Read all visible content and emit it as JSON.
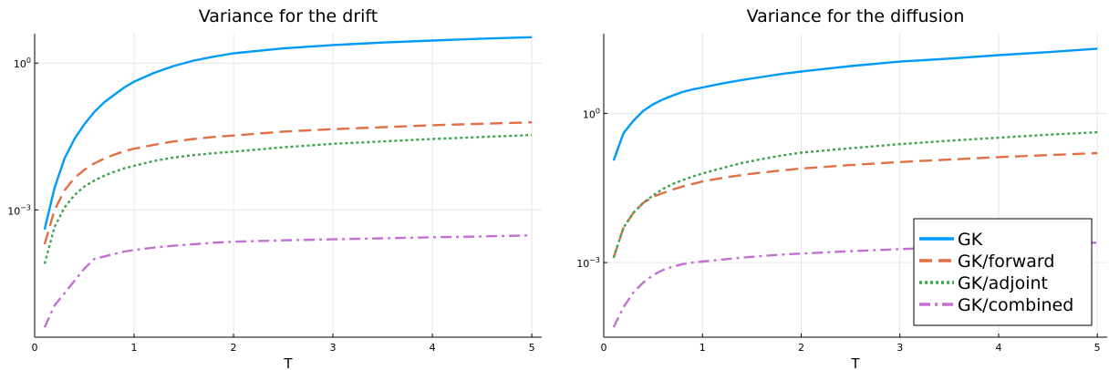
{
  "chart_data": [
    {
      "type": "line",
      "title": "Variance for the drift",
      "xlabel": "T",
      "ylabel": "",
      "yscale": "log10",
      "xlim": [
        0,
        5.1
      ],
      "ylim_log10": [
        -5.6,
        0.6
      ],
      "x_ticks": [
        0,
        1,
        2,
        3,
        4,
        5
      ],
      "x_tick_labels": [
        "0",
        "1",
        "2",
        "3",
        "4",
        "5"
      ],
      "y_ticks_log10": [
        0,
        -3
      ],
      "y_tick_labels": [
        {
          "base": "10",
          "exp": "0"
        },
        {
          "base": "10",
          "exp": "−3"
        }
      ],
      "grid": true,
      "legend": "none",
      "x": [
        0.1,
        0.2,
        0.3,
        0.4,
        0.5,
        0.6,
        0.7,
        0.8,
        0.9,
        1.0,
        1.2,
        1.4,
        1.6,
        1.8,
        2.0,
        2.5,
        3.0,
        3.5,
        4.0,
        4.5,
        5.0
      ],
      "series": [
        {
          "name": "GK",
          "color": "#009af9",
          "dash": "solid",
          "values_log10": [
            -3.4,
            -2.55,
            -1.95,
            -1.55,
            -1.25,
            -1.0,
            -0.8,
            -0.65,
            -0.5,
            -0.38,
            -0.2,
            -0.06,
            0.05,
            0.13,
            0.2,
            0.3,
            0.37,
            0.42,
            0.46,
            0.5,
            0.53
          ]
        },
        {
          "name": "GK/forward",
          "color": "#e26f46",
          "dash": "dashed",
          "values_log10": [
            -3.7,
            -3.0,
            -2.6,
            -2.35,
            -2.18,
            -2.05,
            -1.95,
            -1.87,
            -1.8,
            -1.75,
            -1.67,
            -1.6,
            -1.55,
            -1.51,
            -1.48,
            -1.4,
            -1.35,
            -1.31,
            -1.27,
            -1.24,
            -1.21
          ]
        },
        {
          "name": "GK/adjoint",
          "color": "#3da44d",
          "dash": "dotted",
          "values_log10": [
            -4.1,
            -3.35,
            -2.95,
            -2.7,
            -2.52,
            -2.4,
            -2.3,
            -2.22,
            -2.15,
            -2.1,
            -2.0,
            -1.93,
            -1.88,
            -1.84,
            -1.81,
            -1.72,
            -1.65,
            -1.6,
            -1.55,
            -1.51,
            -1.47
          ]
        },
        {
          "name": "GK/combined",
          "color": "#c271d2",
          "dash": "dashdot",
          "values_log10": [
            -5.4,
            -4.95,
            -4.7,
            -4.45,
            -4.2,
            -4.0,
            -3.95,
            -3.9,
            -3.85,
            -3.82,
            -3.77,
            -3.73,
            -3.7,
            -3.67,
            -3.65,
            -3.62,
            -3.6,
            -3.58,
            -3.56,
            -3.54,
            -3.52
          ]
        }
      ]
    },
    {
      "type": "line",
      "title": "Variance for the diffusion",
      "xlabel": "T",
      "ylabel": "",
      "yscale": "log10",
      "xlim": [
        0,
        5.1
      ],
      "ylim_log10": [
        -4.5,
        1.6
      ],
      "x_ticks": [
        0,
        1,
        2,
        3,
        4,
        5
      ],
      "x_tick_labels": [
        "0",
        "1",
        "2",
        "3",
        "4",
        "5"
      ],
      "y_ticks_log10": [
        0,
        -3
      ],
      "y_tick_labels": [
        {
          "base": "10",
          "exp": "0"
        },
        {
          "base": "10",
          "exp": "−3"
        }
      ],
      "grid": true,
      "legend": "bottom-right",
      "x": [
        0.1,
        0.2,
        0.3,
        0.4,
        0.5,
        0.6,
        0.7,
        0.8,
        0.9,
        1.0,
        1.2,
        1.4,
        1.6,
        1.8,
        2.0,
        2.5,
        3.0,
        3.5,
        4.0,
        4.5,
        5.0
      ],
      "series": [
        {
          "name": "GK",
          "color": "#009af9",
          "dash": "solid",
          "values_log10": [
            -0.95,
            -0.4,
            -0.15,
            0.05,
            0.18,
            0.28,
            0.36,
            0.43,
            0.48,
            0.52,
            0.6,
            0.67,
            0.73,
            0.79,
            0.84,
            0.95,
            1.04,
            1.1,
            1.17,
            1.23,
            1.3
          ]
        },
        {
          "name": "GK/forward",
          "color": "#e26f46",
          "dash": "dashed",
          "values_log10": [
            -2.9,
            -2.3,
            -2.0,
            -1.8,
            -1.68,
            -1.6,
            -1.53,
            -1.47,
            -1.42,
            -1.37,
            -1.3,
            -1.24,
            -1.19,
            -1.15,
            -1.11,
            -1.04,
            -0.98,
            -0.93,
            -0.88,
            -0.84,
            -0.8
          ]
        },
        {
          "name": "GK/adjoint",
          "color": "#3da44d",
          "dash": "dotted",
          "values_log10": [
            -2.9,
            -2.3,
            -2.0,
            -1.8,
            -1.65,
            -1.52,
            -1.42,
            -1.34,
            -1.27,
            -1.21,
            -1.1,
            -1.0,
            -0.92,
            -0.85,
            -0.79,
            -0.7,
            -0.62,
            -0.55,
            -0.49,
            -0.43,
            -0.38
          ]
        },
        {
          "name": "GK/combined",
          "color": "#c271d2",
          "dash": "dashdot",
          "values_log10": [
            -4.3,
            -3.9,
            -3.6,
            -3.4,
            -3.25,
            -3.15,
            -3.08,
            -3.03,
            -3.0,
            -2.98,
            -2.94,
            -2.9,
            -2.87,
            -2.84,
            -2.82,
            -2.77,
            -2.73,
            -2.69,
            -2.66,
            -2.63,
            -2.6
          ]
        }
      ]
    }
  ]
}
